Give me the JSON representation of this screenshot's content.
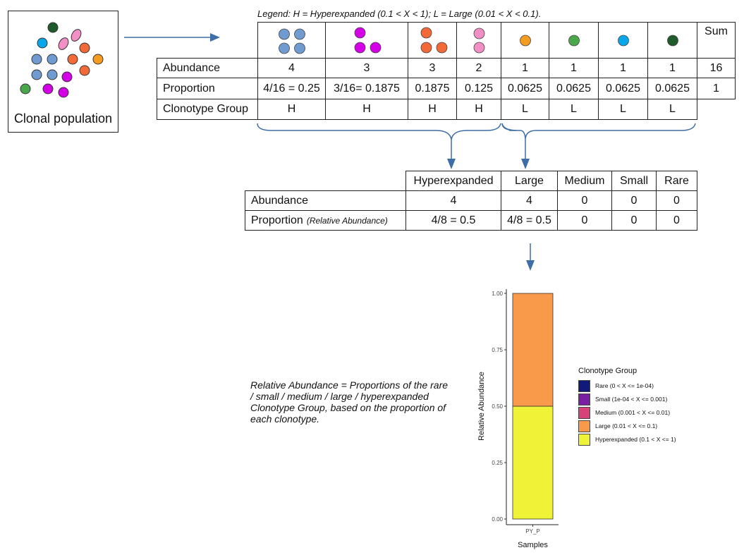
{
  "population": {
    "label": "Clonal population"
  },
  "legend_line": "Legend: H = Hyperexpanded (0.1 < X < 1); L = Large (0.01 < X < 0.1).",
  "table1": {
    "sum_header": "Sum",
    "row_labels": [
      "Abundance",
      "Proportion",
      "Clonotype Group"
    ],
    "columns": [
      {
        "abundance": "4",
        "proportion": "4/16 = 0.25",
        "group": "H",
        "color": "#6f9bd1"
      },
      {
        "abundance": "3",
        "proportion": "3/16= 0.1875",
        "group": "H",
        "color": "#d400e6"
      },
      {
        "abundance": "3",
        "proportion": "0.1875",
        "group": "H",
        "color": "#f2693a"
      },
      {
        "abundance": "2",
        "proportion": "0.125",
        "group": "H",
        "color": "#f28fc4"
      },
      {
        "abundance": "1",
        "proportion": "0.0625",
        "group": "L",
        "color": "#f59b1f"
      },
      {
        "abundance": "1",
        "proportion": "0.0625",
        "group": "L",
        "color": "#49a84a"
      },
      {
        "abundance": "1",
        "proportion": "0.0625",
        "group": "L",
        "color": "#0aa6ea"
      },
      {
        "abundance": "1",
        "proportion": "0.0625",
        "group": "L",
        "color": "#1f5a2a"
      }
    ],
    "sum": {
      "abundance": "16",
      "proportion": "1"
    }
  },
  "table2": {
    "headers": [
      "Hyperexpanded",
      "Large",
      "Medium",
      "Small",
      "Rare"
    ],
    "abundance_label": "Abundance",
    "proportion_label": "Proportion",
    "proportion_sub": "(Relative Abundance)",
    "abundance": [
      "4",
      "4",
      "0",
      "0",
      "0"
    ],
    "proportion": [
      "4/8 = 0.5",
      "4/8 = 0.5",
      "0",
      "0",
      "0"
    ]
  },
  "note": "Relative Abundance = Proportions of the rare / small / medium / large / hyperexpanded Clonotype Group, based on the proportion of each clonotype.",
  "chart_data": {
    "type": "bar",
    "stacked": true,
    "categories": [
      "PY_P"
    ],
    "xlabel": "Samples",
    "ylabel": "Relative Abundance",
    "ylim": [
      0,
      1
    ],
    "yticks": [
      "0.00",
      "0.25",
      "0.50",
      "0.75",
      "1.00"
    ],
    "series": [
      {
        "name": "Hyperexpanded (0.1 < X <= 1)",
        "values": [
          0.5
        ],
        "color": "#eef337"
      },
      {
        "name": "Large (0.01 < X <= 0.1)",
        "values": [
          0.5
        ],
        "color": "#f99a4a"
      }
    ],
    "legend_title": "Clonotype Group",
    "legend_entries": [
      {
        "label": "Rare (0 < X <= 1e-04)",
        "color": "#0f1a7a"
      },
      {
        "label": "Small (1e-04 < X <= 0.001)",
        "color": "#7a1fa2"
      },
      {
        "label": "Medium (0.001 < X <= 0.01)",
        "color": "#d94278"
      },
      {
        "label": "Large (0.01 < X <= 0.1)",
        "color": "#f99a4a"
      },
      {
        "label": "Hyperexpanded (0.1 < X <= 1)",
        "color": "#eef337"
      }
    ],
    "legend_position": "right"
  }
}
